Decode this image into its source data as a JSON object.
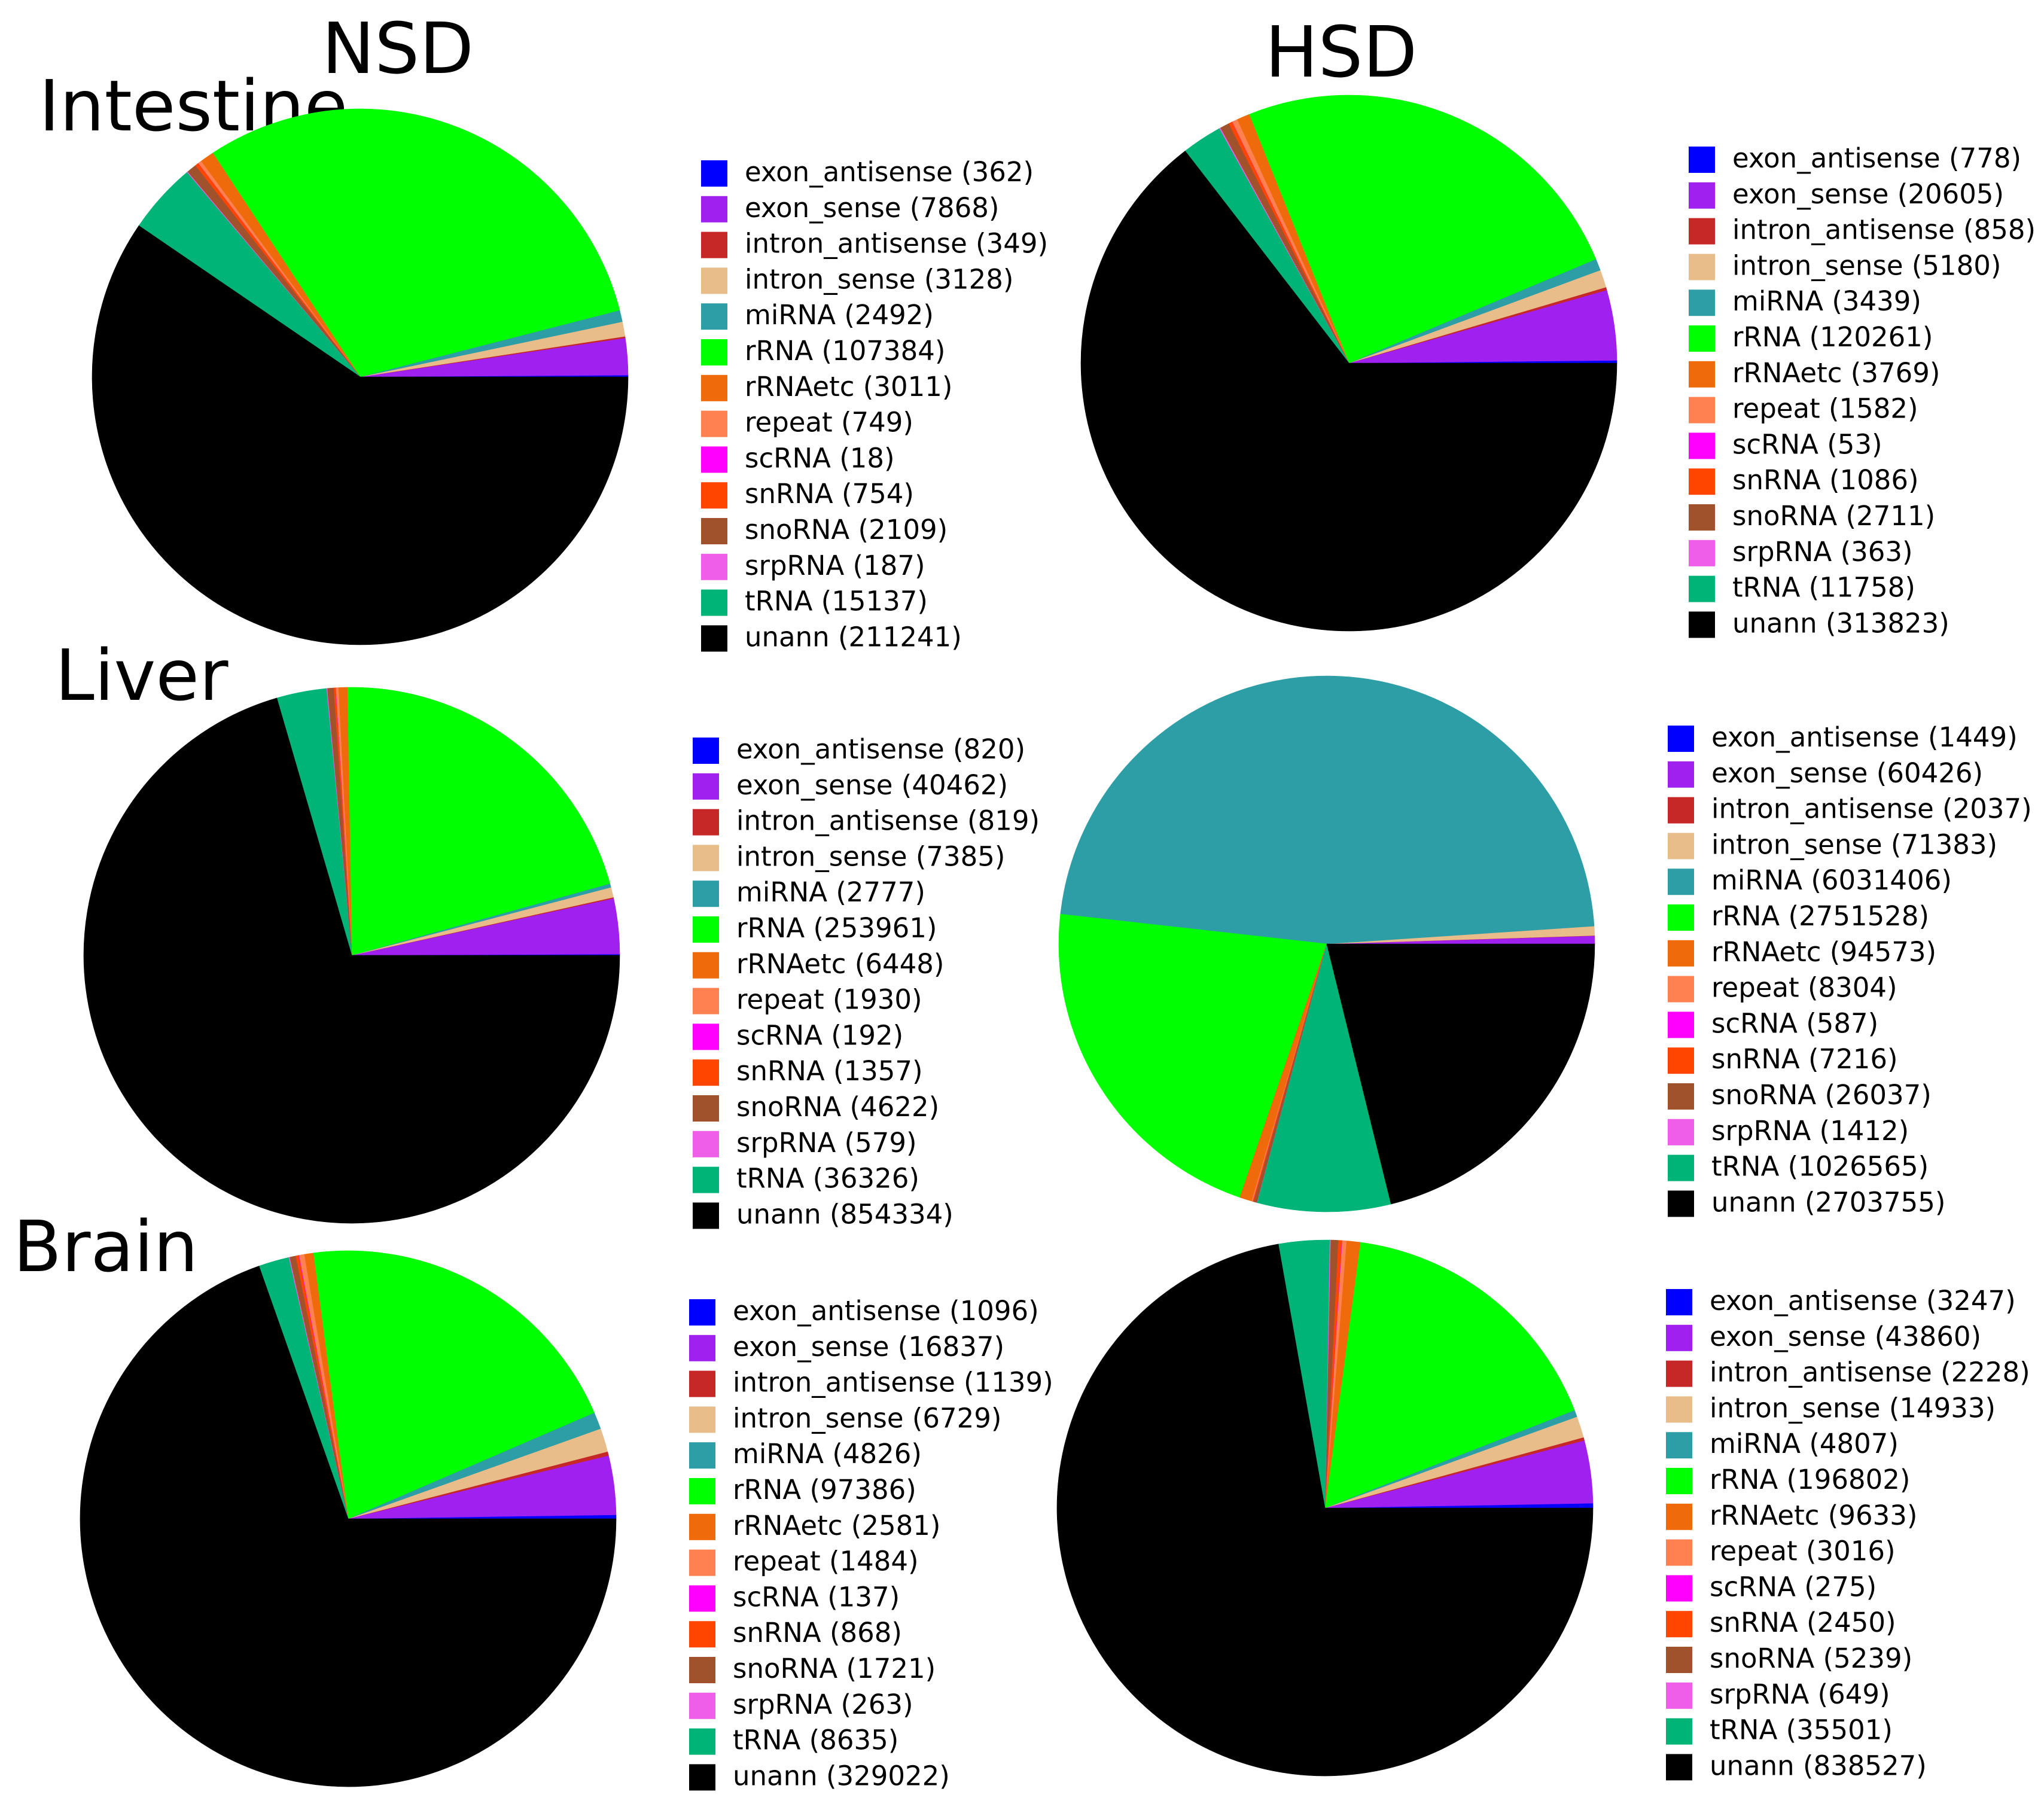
{
  "column_titles": [
    "NSD",
    "HSD"
  ],
  "row_titles": [
    "Intestine",
    "Liver",
    "Brain"
  ],
  "category_colors": {
    "exon_antisense": "#0000ff",
    "exon_sense": "#a020f0",
    "intron_antisense": "#c62828",
    "intron_sense": "#e8bd8a",
    "miRNA": "#2e9ea6",
    "rRNA": "#00ff00",
    "rRNAetc": "#ee6a0a",
    "repeat": "#ff8050",
    "scRNA": "#ff00ff",
    "snRNA": "#ff4500",
    "snoRNA": "#a0522d",
    "srpRNA": "#ee5ee8",
    "tRNA": "#00b377",
    "unann": "#000000"
  },
  "chart_data": [
    {
      "type": "pie",
      "row": "Intestine",
      "column": "NSD",
      "legend_position": "right",
      "categories": [
        "exon_antisense",
        "exon_sense",
        "intron_antisense",
        "intron_sense",
        "miRNA",
        "rRNA",
        "rRNAetc",
        "repeat",
        "scRNA",
        "snRNA",
        "snoRNA",
        "srpRNA",
        "tRNA",
        "unann"
      ],
      "values": [
        362,
        7868,
        349,
        3128,
        2492,
        107384,
        3011,
        749,
        18,
        754,
        2109,
        187,
        15137,
        211241
      ],
      "legend_labels": [
        "exon_antisense (362)",
        "exon_sense (7868)",
        "intron_antisense (349)",
        "intron_sense (3128)",
        "miRNA (2492)",
        "rRNA (107384)",
        "rRNAetc (3011)",
        "repeat (749)",
        "scRNA (18)",
        "snRNA (754)",
        "snoRNA (2109)",
        "srpRNA (187)",
        "tRNA (15137)",
        "unann (211241)"
      ]
    },
    {
      "type": "pie",
      "row": "Intestine",
      "column": "HSD",
      "legend_position": "right",
      "categories": [
        "exon_antisense",
        "exon_sense",
        "intron_antisense",
        "intron_sense",
        "miRNA",
        "rRNA",
        "rRNAetc",
        "repeat",
        "scRNA",
        "snRNA",
        "snoRNA",
        "srpRNA",
        "tRNA",
        "unann"
      ],
      "values": [
        778,
        20605,
        858,
        5180,
        3439,
        120261,
        3769,
        1582,
        53,
        1086,
        2711,
        363,
        11758,
        313823
      ],
      "legend_labels": [
        "exon_antisense (778)",
        "exon_sense (20605)",
        "intron_antisense (858)",
        "intron_sense (5180)",
        "miRNA (3439)",
        "rRNA (120261)",
        "rRNAetc (3769)",
        "repeat (1582)",
        "scRNA (53)",
        "snRNA (1086)",
        "snoRNA (2711)",
        "srpRNA (363)",
        "tRNA (11758)",
        "unann (313823)"
      ]
    },
    {
      "type": "pie",
      "row": "Liver",
      "column": "NSD",
      "legend_position": "right",
      "categories": [
        "exon_antisense",
        "exon_sense",
        "intron_antisense",
        "intron_sense",
        "miRNA",
        "rRNA",
        "rRNAetc",
        "repeat",
        "scRNA",
        "snRNA",
        "snoRNA",
        "srpRNA",
        "tRNA",
        "unann"
      ],
      "values": [
        820,
        40462,
        819,
        7385,
        2777,
        253961,
        6448,
        1930,
        192,
        1357,
        4622,
        579,
        36326,
        854334
      ],
      "legend_labels": [
        "exon_antisense (820)",
        "exon_sense (40462)",
        "intron_antisense (819)",
        "intron_sense (7385)",
        "miRNA (2777)",
        "rRNA (253961)",
        "rRNAetc (6448)",
        "repeat (1930)",
        "scRNA (192)",
        "snRNA (1357)",
        "snoRNA (4622)",
        "srpRNA (579)",
        "tRNA (36326)",
        "unann (854334)"
      ]
    },
    {
      "type": "pie",
      "row": "Liver",
      "column": "HSD",
      "legend_position": "right",
      "categories": [
        "exon_antisense",
        "exon_sense",
        "intron_antisense",
        "intron_sense",
        "miRNA",
        "rRNA",
        "rRNAetc",
        "repeat",
        "scRNA",
        "snRNA",
        "snoRNA",
        "srpRNA",
        "tRNA",
        "unann"
      ],
      "values": [
        1449,
        60426,
        2037,
        71383,
        6031406,
        2751528,
        94573,
        8304,
        587,
        7216,
        26037,
        1412,
        1026565,
        2703755
      ],
      "legend_labels": [
        "exon_antisense (1449)",
        "exon_sense (60426)",
        "intron_antisense (2037)",
        "intron_sense (71383)",
        "miRNA (6031406)",
        "rRNA (2751528)",
        "rRNAetc (94573)",
        "repeat (8304)",
        "scRNA (587)",
        "snRNA (7216)",
        "snoRNA (26037)",
        "srpRNA (1412)",
        "tRNA (1026565)",
        "unann (2703755)"
      ]
    },
    {
      "type": "pie",
      "row": "Brain",
      "column": "NSD",
      "legend_position": "right",
      "categories": [
        "exon_antisense",
        "exon_sense",
        "intron_antisense",
        "intron_sense",
        "miRNA",
        "rRNA",
        "rRNAetc",
        "repeat",
        "scRNA",
        "snRNA",
        "snoRNA",
        "srpRNA",
        "tRNA",
        "unann"
      ],
      "values": [
        1096,
        16837,
        1139,
        6729,
        4826,
        97386,
        2581,
        1484,
        137,
        868,
        1721,
        263,
        8635,
        329022
      ],
      "legend_labels": [
        "exon_antisense (1096)",
        "exon_sense (16837)",
        "intron_antisense (1139)",
        "intron_sense (6729)",
        "miRNA (4826)",
        "rRNA (97386)",
        "rRNAetc (2581)",
        "repeat (1484)",
        "scRNA (137)",
        "snRNA (868)",
        "snoRNA (1721)",
        "srpRNA (263)",
        "tRNA (8635)",
        "unann (329022)"
      ]
    },
    {
      "type": "pie",
      "row": "Brain",
      "column": "HSD",
      "legend_position": "right",
      "categories": [
        "exon_antisense",
        "exon_sense",
        "intron_antisense",
        "intron_sense",
        "miRNA",
        "rRNA",
        "rRNAetc",
        "repeat",
        "scRNA",
        "snRNA",
        "snoRNA",
        "srpRNA",
        "tRNA",
        "unann"
      ],
      "values": [
        3247,
        43860,
        2228,
        14933,
        4807,
        196802,
        9633,
        3016,
        275,
        2450,
        5239,
        649,
        35501,
        838527
      ],
      "legend_labels": [
        "exon_antisense (3247)",
        "exon_sense (43860)",
        "intron_antisense (2228)",
        "intron_sense (14933)",
        "miRNA (4807)",
        "rRNA (196802)",
        "rRNAetc (9633)",
        "repeat (3016)",
        "scRNA (275)",
        "snRNA (2450)",
        "snoRNA (5239)",
        "srpRNA (649)",
        "tRNA (35501)",
        "unann (838527)"
      ]
    }
  ]
}
